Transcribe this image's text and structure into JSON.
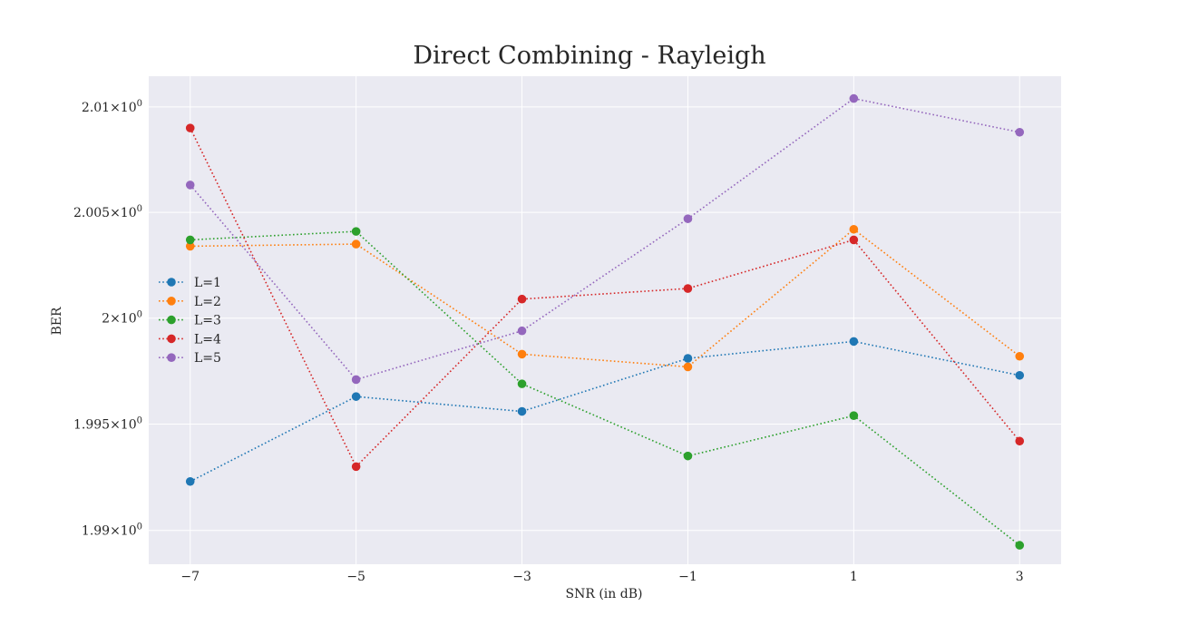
{
  "chart_data": {
    "type": "line",
    "title": "Direct Combining - Rayleigh",
    "xlabel": "SNR (in dB)",
    "ylabel": "BER",
    "x": [
      -7,
      -5,
      -3,
      -1,
      1,
      3
    ],
    "x_ticks": [
      -7,
      -5,
      -3,
      -1,
      1,
      3
    ],
    "x_tick_labels": [
      "−7",
      "−5",
      "−3",
      "−1",
      "1",
      "3"
    ],
    "xlim": [
      -7.5,
      3.5
    ],
    "yscale": "log",
    "ylim": [
      1.98841,
      2.01146
    ],
    "y_ticks": [
      {
        "value": 1.99,
        "label": "1.99"
      },
      {
        "value": 1.995,
        "label": "1.995"
      },
      {
        "value": 2.0,
        "label": "2"
      },
      {
        "value": 2.005,
        "label": "2.005"
      },
      {
        "value": 2.01,
        "label": "2.01"
      }
    ],
    "y_tick_suffix": "×10",
    "y_tick_exponent": "0",
    "grid": true,
    "legend_position": "center-left",
    "series": [
      {
        "name": "L=1",
        "color": "#1f77b4",
        "values": [
          1.9923,
          1.9963,
          1.9956,
          1.9981,
          1.9989,
          1.9973
        ]
      },
      {
        "name": "L=2",
        "color": "#ff7f0e",
        "values": [
          2.0034,
          2.0035,
          1.9983,
          1.9977,
          2.0042,
          1.9982
        ]
      },
      {
        "name": "L=3",
        "color": "#2ca02c",
        "values": [
          2.0037,
          2.0041,
          1.9969,
          1.9935,
          1.9954,
          1.9893
        ]
      },
      {
        "name": "L=4",
        "color": "#d62728",
        "values": [
          2.009,
          1.993,
          2.0009,
          2.0014,
          2.0037,
          1.9942
        ]
      },
      {
        "name": "L=5",
        "color": "#9467bd",
        "values": [
          2.0063,
          1.9971,
          1.9994,
          2.0047,
          2.0104,
          2.0088
        ]
      }
    ]
  }
}
